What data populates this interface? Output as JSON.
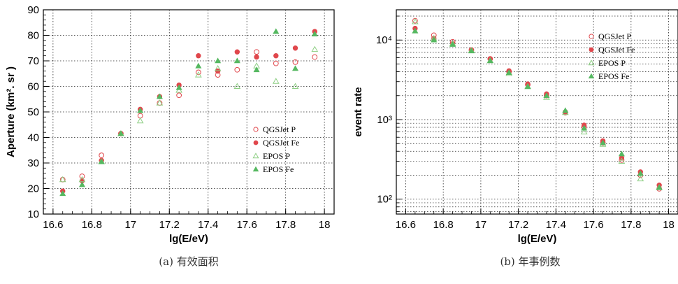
{
  "chart_data": [
    {
      "type": "scatter",
      "xlabel": "lg(E/eV)",
      "ylabel": "Aperture (km². sr )",
      "xlim": [
        16.55,
        18.05
      ],
      "ylim": [
        10,
        90
      ],
      "yscale": "linear",
      "xticks": [
        "16.6",
        "16.8",
        "17",
        "17.2",
        "17.4",
        "17.6",
        "17.8",
        "18"
      ],
      "yticks": [
        "10",
        "20",
        "30",
        "40",
        "50",
        "60",
        "70",
        "80",
        "90"
      ],
      "grid": true,
      "legend_position": "right",
      "caption": "(a) 有效面积",
      "x": [
        16.65,
        16.75,
        16.85,
        16.95,
        17.05,
        17.15,
        17.25,
        17.35,
        17.45,
        17.55,
        17.65,
        17.75,
        17.85,
        17.95
      ],
      "series": [
        {
          "name": "QGSJet P",
          "marker": "open-circle",
          "values": [
            23.5,
            24.8,
            33,
            41.5,
            48.5,
            53.5,
            56.5,
            65.5,
            64.5,
            66.5,
            73.5,
            69,
            69.5,
            71.5
          ]
        },
        {
          "name": "QGSJet Fe",
          "marker": "filled-circle",
          "values": [
            19,
            23,
            31,
            41.5,
            51,
            56,
            60.5,
            72,
            66,
            73.5,
            71.5,
            72,
            75,
            81.5
          ]
        },
        {
          "name": "EPOS P",
          "marker": "open-triangle",
          "values": [
            23.5,
            23.5,
            30.5,
            41.5,
            46.5,
            53.5,
            58.5,
            64.5,
            67,
            60,
            68,
            62,
            60,
            74.5
          ]
        },
        {
          "name": "EPOS Fe",
          "marker": "filled-triangle",
          "values": [
            18,
            21.5,
            30.5,
            41.5,
            50.5,
            56,
            59.5,
            68,
            70,
            70,
            66.5,
            81.5,
            67,
            80.5
          ]
        }
      ]
    },
    {
      "type": "scatter",
      "xlabel": "lg(E/eV)",
      "ylabel": "event rate",
      "xlim": [
        16.55,
        18.05
      ],
      "ylim": [
        65,
        24000
      ],
      "yscale": "log",
      "xticks": [
        "16.6",
        "16.8",
        "17",
        "17.2",
        "17.4",
        "17.6",
        "17.8",
        "18"
      ],
      "yticks": [
        "10²",
        "10³",
        "10⁴"
      ],
      "grid": true,
      "legend_position": "top-right",
      "caption": "(b) 年事例数",
      "x": [
        16.65,
        16.75,
        16.85,
        16.95,
        17.05,
        17.15,
        17.25,
        17.35,
        17.45,
        17.55,
        17.65,
        17.75,
        17.85,
        17.95
      ],
      "series": [
        {
          "name": "QGSJet P",
          "marker": "open-circle",
          "values": [
            17500,
            11500,
            9500,
            7500,
            5800,
            4000,
            2750,
            2000,
            1220,
            800,
            510,
            310,
            200,
            135
          ]
        },
        {
          "name": "QGSJet Fe",
          "marker": "filled-circle",
          "values": [
            14000,
            10500,
            9000,
            7500,
            5800,
            4100,
            2800,
            2100,
            1250,
            850,
            540,
            330,
            220,
            150
          ]
        },
        {
          "name": "EPOS P",
          "marker": "open-triangle",
          "values": [
            17000,
            10500,
            9000,
            7400,
            5500,
            3800,
            2600,
            1900,
            1230,
            700,
            490,
            300,
            180,
            140
          ]
        },
        {
          "name": "EPOS Fe",
          "marker": "filled-triangle",
          "values": [
            13000,
            10000,
            8800,
            7300,
            5500,
            3900,
            2600,
            2000,
            1300,
            780,
            510,
            370,
            210,
            140
          ]
        }
      ]
    }
  ],
  "colors": {
    "series": "#e0474c",
    "series_light": "#f08a8c",
    "triangle_open": "#8fcf85",
    "triangle_fill": "#55b860"
  }
}
